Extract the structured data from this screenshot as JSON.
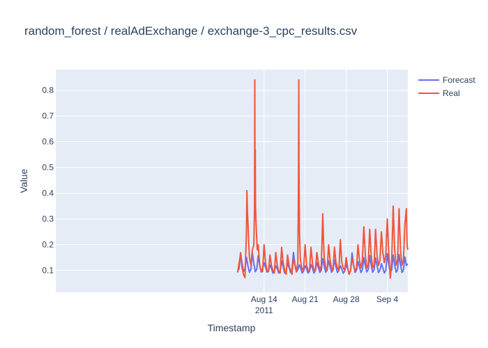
{
  "chart_data": {
    "type": "line",
    "title": "random_forest / realAdExchange / exchange-3_cpc_results.csv",
    "xlabel": "Timestamp",
    "ylabel": "Value",
    "x_range": [
      "2011-07-09T12:00",
      "2011-09-07T12:00"
    ],
    "x_ticks": [
      {
        "date": "2011-08-14",
        "label": "Aug 14",
        "sublabel": "2011"
      },
      {
        "date": "2011-08-21",
        "label": "Aug 21",
        "sublabel": ""
      },
      {
        "date": "2011-08-28",
        "label": "Aug 28",
        "sublabel": ""
      },
      {
        "date": "2011-09-04",
        "label": "Sep 4",
        "sublabel": ""
      }
    ],
    "ylim": [
      0.015,
      0.88
    ],
    "y_ticks": [
      0.1,
      0.2,
      0.3,
      0.4,
      0.5,
      0.6,
      0.7,
      0.8
    ],
    "grid": true,
    "legend_position": "top-right",
    "series": [
      {
        "name": "Forecast",
        "color": "#636efa",
        "points": [
          [
            "2011-08-09T12:00",
            0.097
          ],
          [
            "2011-08-09T18:00",
            0.108
          ],
          [
            "2011-08-10T00:00",
            0.169
          ],
          [
            "2011-08-10T06:00",
            0.128
          ],
          [
            "2011-08-10T12:00",
            0.096
          ],
          [
            "2011-08-10T18:00",
            0.106
          ],
          [
            "2011-08-11T00:00",
            0.152
          ],
          [
            "2011-08-11T06:00",
            0.118
          ],
          [
            "2011-08-11T12:00",
            0.093
          ],
          [
            "2011-08-11T18:00",
            0.104
          ],
          [
            "2011-08-12T00:00",
            0.168
          ],
          [
            "2011-08-12T06:00",
            0.127
          ],
          [
            "2011-08-12T12:00",
            0.095
          ],
          [
            "2011-08-12T18:00",
            0.105
          ],
          [
            "2011-08-13T00:00",
            0.157
          ],
          [
            "2011-08-13T06:00",
            0.12
          ],
          [
            "2011-08-13T12:00",
            0.094
          ],
          [
            "2011-08-13T18:00",
            0.106
          ],
          [
            "2011-08-14T00:00",
            0.13
          ],
          [
            "2011-08-14T06:00",
            0.112
          ],
          [
            "2011-08-14T12:00",
            0.093
          ],
          [
            "2011-08-14T18:00",
            0.1
          ],
          [
            "2011-08-15T00:00",
            0.121
          ],
          [
            "2011-08-15T06:00",
            0.108
          ],
          [
            "2011-08-15T12:00",
            0.09
          ],
          [
            "2011-08-15T18:00",
            0.098
          ],
          [
            "2011-08-16T00:00",
            0.118
          ],
          [
            "2011-08-16T06:00",
            0.107
          ],
          [
            "2011-08-16T12:00",
            0.09
          ],
          [
            "2011-08-16T18:00",
            0.099
          ],
          [
            "2011-08-17T00:00",
            0.137
          ],
          [
            "2011-08-17T06:00",
            0.114
          ],
          [
            "2011-08-17T12:00",
            0.09
          ],
          [
            "2011-08-17T18:00",
            0.1
          ],
          [
            "2011-08-18T00:00",
            0.129
          ],
          [
            "2011-08-18T06:00",
            0.112
          ],
          [
            "2011-08-18T12:00",
            0.092
          ],
          [
            "2011-08-18T18:00",
            0.103
          ],
          [
            "2011-08-19T00:00",
            0.17
          ],
          [
            "2011-08-19T06:00",
            0.126
          ],
          [
            "2011-08-19T12:00",
            0.094
          ],
          [
            "2011-08-19T18:00",
            0.102
          ],
          [
            "2011-08-20T00:00",
            0.122
          ],
          [
            "2011-08-20T06:00",
            0.108
          ],
          [
            "2011-08-20T12:00",
            0.09
          ],
          [
            "2011-08-20T18:00",
            0.098
          ],
          [
            "2011-08-21T00:00",
            0.118
          ],
          [
            "2011-08-21T06:00",
            0.106
          ],
          [
            "2011-08-21T12:00",
            0.09
          ],
          [
            "2011-08-21T18:00",
            0.097
          ],
          [
            "2011-08-22T00:00",
            0.123
          ],
          [
            "2011-08-22T06:00",
            0.109
          ],
          [
            "2011-08-22T12:00",
            0.09
          ],
          [
            "2011-08-22T18:00",
            0.099
          ],
          [
            "2011-08-23T00:00",
            0.131
          ],
          [
            "2011-08-23T06:00",
            0.112
          ],
          [
            "2011-08-23T12:00",
            0.092
          ],
          [
            "2011-08-23T18:00",
            0.101
          ],
          [
            "2011-08-24T00:00",
            0.146
          ],
          [
            "2011-08-24T06:00",
            0.117
          ],
          [
            "2011-08-24T12:00",
            0.093
          ],
          [
            "2011-08-24T18:00",
            0.102
          ],
          [
            "2011-08-25T00:00",
            0.138
          ],
          [
            "2011-08-25T06:00",
            0.115
          ],
          [
            "2011-08-25T12:00",
            0.093
          ],
          [
            "2011-08-25T18:00",
            0.101
          ],
          [
            "2011-08-26T00:00",
            0.14
          ],
          [
            "2011-08-26T06:00",
            0.116
          ],
          [
            "2011-08-26T12:00",
            0.092
          ],
          [
            "2011-08-26T18:00",
            0.1
          ],
          [
            "2011-08-27T00:00",
            0.118
          ],
          [
            "2011-08-27T06:00",
            0.106
          ],
          [
            "2011-08-27T12:00",
            0.089
          ],
          [
            "2011-08-27T18:00",
            0.098
          ],
          [
            "2011-08-28T00:00",
            0.122
          ],
          [
            "2011-08-28T06:00",
            0.108
          ],
          [
            "2011-08-28T12:00",
            0.088
          ],
          [
            "2011-08-28T18:00",
            0.098
          ],
          [
            "2011-08-29T00:00",
            0.168
          ],
          [
            "2011-08-29T06:00",
            0.124
          ],
          [
            "2011-08-29T12:00",
            0.092
          ],
          [
            "2011-08-29T18:00",
            0.101
          ],
          [
            "2011-08-30T00:00",
            0.134
          ],
          [
            "2011-08-30T06:00",
            0.114
          ],
          [
            "2011-08-30T12:00",
            0.092
          ],
          [
            "2011-08-30T18:00",
            0.102
          ],
          [
            "2011-08-31T00:00",
            0.15
          ],
          [
            "2011-08-31T06:00",
            0.12
          ],
          [
            "2011-08-31T12:00",
            0.094
          ],
          [
            "2011-08-31T18:00",
            0.103
          ],
          [
            "2011-09-01T00:00",
            0.158
          ],
          [
            "2011-09-01T06:00",
            0.122
          ],
          [
            "2011-09-01T12:00",
            0.093
          ],
          [
            "2011-09-01T18:00",
            0.103
          ],
          [
            "2011-09-02T00:00",
            0.149
          ],
          [
            "2011-09-02T06:00",
            0.119
          ],
          [
            "2011-09-02T12:00",
            0.092
          ],
          [
            "2011-09-02T18:00",
            0.101
          ],
          [
            "2011-09-03T00:00",
            0.126
          ],
          [
            "2011-09-03T06:00",
            0.11
          ],
          [
            "2011-09-03T12:00",
            0.09
          ],
          [
            "2011-09-03T18:00",
            0.1
          ],
          [
            "2011-09-04T00:00",
            0.165
          ],
          [
            "2011-09-04T06:00",
            0.124
          ],
          [
            "2011-09-04T12:00",
            0.093
          ],
          [
            "2011-09-04T18:00",
            0.102
          ],
          [
            "2011-09-05T00:00",
            0.16
          ],
          [
            "2011-09-05T06:00",
            0.122
          ],
          [
            "2011-09-05T12:00",
            0.093
          ],
          [
            "2011-09-05T18:00",
            0.102
          ],
          [
            "2011-09-06T00:00",
            0.162
          ],
          [
            "2011-09-06T06:00",
            0.123
          ],
          [
            "2011-09-06T12:00",
            0.092
          ],
          [
            "2011-09-06T18:00",
            0.101
          ],
          [
            "2011-09-07T00:00",
            0.152
          ],
          [
            "2011-09-07T06:00",
            0.12
          ],
          [
            "2011-09-07T12:00",
            0.125
          ]
        ]
      },
      {
        "name": "Real",
        "color": "#ef553b",
        "points": [
          [
            "2011-08-09T12:00",
            0.092
          ],
          [
            "2011-08-09T18:00",
            0.13
          ],
          [
            "2011-08-10T00:00",
            0.165
          ],
          [
            "2011-08-10T06:00",
            0.11
          ],
          [
            "2011-08-10T12:00",
            0.085
          ],
          [
            "2011-08-10T18:00",
            0.072
          ],
          [
            "2011-08-11T00:00",
            0.25
          ],
          [
            "2011-08-11T02:00",
            0.41
          ],
          [
            "2011-08-11T04:00",
            0.33
          ],
          [
            "2011-08-11T06:00",
            0.29
          ],
          [
            "2011-08-11T09:00",
            0.21
          ],
          [
            "2011-08-11T12:00",
            0.15
          ],
          [
            "2011-08-11T18:00",
            0.12
          ],
          [
            "2011-08-12T00:00",
            0.18
          ],
          [
            "2011-08-12T06:00",
            0.2
          ],
          [
            "2011-08-12T09:00",
            0.34
          ],
          [
            "2011-08-12T10:00",
            0.84
          ],
          [
            "2011-08-12T11:00",
            0.45
          ],
          [
            "2011-08-12T12:00",
            0.57
          ],
          [
            "2011-08-12T13:00",
            0.35
          ],
          [
            "2011-08-12T16:00",
            0.26
          ],
          [
            "2011-08-12T20:00",
            0.18
          ],
          [
            "2011-08-13T00:00",
            0.2
          ],
          [
            "2011-08-13T06:00",
            0.12
          ],
          [
            "2011-08-13T12:00",
            0.1
          ],
          [
            "2011-08-13T18:00",
            0.095
          ],
          [
            "2011-08-14T00:00",
            0.2
          ],
          [
            "2011-08-14T06:00",
            0.13
          ],
          [
            "2011-08-14T12:00",
            0.1
          ],
          [
            "2011-08-14T18:00",
            0.095
          ],
          [
            "2011-08-15T00:00",
            0.16
          ],
          [
            "2011-08-15T06:00",
            0.12
          ],
          [
            "2011-08-15T12:00",
            0.1
          ],
          [
            "2011-08-15T18:00",
            0.09
          ],
          [
            "2011-08-16T00:00",
            0.17
          ],
          [
            "2011-08-16T06:00",
            0.12
          ],
          [
            "2011-08-16T12:00",
            0.095
          ],
          [
            "2011-08-16T18:00",
            0.09
          ],
          [
            "2011-08-17T00:00",
            0.19
          ],
          [
            "2011-08-17T06:00",
            0.13
          ],
          [
            "2011-08-17T12:00",
            0.1
          ],
          [
            "2011-08-17T18:00",
            0.085
          ],
          [
            "2011-08-18T00:00",
            0.16
          ],
          [
            "2011-08-18T06:00",
            0.12
          ],
          [
            "2011-08-18T12:00",
            0.1
          ],
          [
            "2011-08-18T18:00",
            0.085
          ],
          [
            "2011-08-19T00:00",
            0.15
          ],
          [
            "2011-08-19T06:00",
            0.12
          ],
          [
            "2011-08-19T12:00",
            0.095
          ],
          [
            "2011-08-19T18:00",
            0.13
          ],
          [
            "2011-08-19T21:00",
            0.45
          ],
          [
            "2011-08-19T22:00",
            0.84
          ],
          [
            "2011-08-19T23:00",
            0.5
          ],
          [
            "2011-08-20T01:00",
            0.25
          ],
          [
            "2011-08-20T04:00",
            0.15
          ],
          [
            "2011-08-20T08:00",
            0.12
          ],
          [
            "2011-08-20T12:00",
            0.1
          ],
          [
            "2011-08-20T18:00",
            0.11
          ],
          [
            "2011-08-21T00:00",
            0.2
          ],
          [
            "2011-08-21T06:00",
            0.12
          ],
          [
            "2011-08-21T12:00",
            0.1
          ],
          [
            "2011-08-21T18:00",
            0.1
          ],
          [
            "2011-08-22T00:00",
            0.19
          ],
          [
            "2011-08-22T06:00",
            0.13
          ],
          [
            "2011-08-22T12:00",
            0.1
          ],
          [
            "2011-08-22T18:00",
            0.1
          ],
          [
            "2011-08-23T00:00",
            0.17
          ],
          [
            "2011-08-23T06:00",
            0.13
          ],
          [
            "2011-08-23T12:00",
            0.1
          ],
          [
            "2011-08-23T18:00",
            0.12
          ],
          [
            "2011-08-24T00:00",
            0.32
          ],
          [
            "2011-08-24T03:00",
            0.22
          ],
          [
            "2011-08-24T06:00",
            0.15
          ],
          [
            "2011-08-24T12:00",
            0.11
          ],
          [
            "2011-08-24T18:00",
            0.1
          ],
          [
            "2011-08-25T00:00",
            0.2
          ],
          [
            "2011-08-25T06:00",
            0.14
          ],
          [
            "2011-08-25T12:00",
            0.11
          ],
          [
            "2011-08-25T18:00",
            0.1
          ],
          [
            "2011-08-26T00:00",
            0.19
          ],
          [
            "2011-08-26T06:00",
            0.13
          ],
          [
            "2011-08-26T12:00",
            0.11
          ],
          [
            "2011-08-26T18:00",
            0.1
          ],
          [
            "2011-08-27T00:00",
            0.22
          ],
          [
            "2011-08-27T06:00",
            0.13
          ],
          [
            "2011-08-27T12:00",
            0.11
          ],
          [
            "2011-08-27T18:00",
            0.1
          ],
          [
            "2011-08-28T00:00",
            0.15
          ],
          [
            "2011-08-28T06:00",
            0.11
          ],
          [
            "2011-08-28T12:00",
            0.085
          ],
          [
            "2011-08-28T18:00",
            0.1
          ],
          [
            "2011-08-29T00:00",
            0.15
          ],
          [
            "2011-08-29T06:00",
            0.12
          ],
          [
            "2011-08-29T12:00",
            0.1
          ],
          [
            "2011-08-29T18:00",
            0.11
          ],
          [
            "2011-08-30T00:00",
            0.2
          ],
          [
            "2011-08-30T06:00",
            0.14
          ],
          [
            "2011-08-30T12:00",
            0.11
          ],
          [
            "2011-08-30T18:00",
            0.14
          ],
          [
            "2011-08-31T00:00",
            0.27
          ],
          [
            "2011-08-31T06:00",
            0.16
          ],
          [
            "2011-08-31T12:00",
            0.11
          ],
          [
            "2011-08-31T18:00",
            0.12
          ],
          [
            "2011-09-01T00:00",
            0.26
          ],
          [
            "2011-09-01T06:00",
            0.16
          ],
          [
            "2011-09-01T12:00",
            0.11
          ],
          [
            "2011-09-01T18:00",
            0.12
          ],
          [
            "2011-09-02T00:00",
            0.26
          ],
          [
            "2011-09-02T06:00",
            0.16
          ],
          [
            "2011-09-02T12:00",
            0.12
          ],
          [
            "2011-09-02T18:00",
            0.14
          ],
          [
            "2011-09-03T00:00",
            0.25
          ],
          [
            "2011-09-03T06:00",
            0.17
          ],
          [
            "2011-09-03T12:00",
            0.13
          ],
          [
            "2011-09-03T18:00",
            0.16
          ],
          [
            "2011-09-04T00:00",
            0.3
          ],
          [
            "2011-09-04T06:00",
            0.17
          ],
          [
            "2011-09-04T12:00",
            0.07
          ],
          [
            "2011-09-04T18:00",
            0.14
          ],
          [
            "2011-09-05T00:00",
            0.35
          ],
          [
            "2011-09-05T06:00",
            0.18
          ],
          [
            "2011-09-05T12:00",
            0.12
          ],
          [
            "2011-09-05T18:00",
            0.14
          ],
          [
            "2011-09-06T00:00",
            0.34
          ],
          [
            "2011-09-06T06:00",
            0.18
          ],
          [
            "2011-09-06T12:00",
            0.12
          ],
          [
            "2011-09-06T18:00",
            0.14
          ],
          [
            "2011-09-07T00:00",
            0.28
          ],
          [
            "2011-09-07T06:00",
            0.34
          ],
          [
            "2011-09-07T09:00",
            0.2
          ],
          [
            "2011-09-07T12:00",
            0.18
          ]
        ]
      }
    ]
  }
}
